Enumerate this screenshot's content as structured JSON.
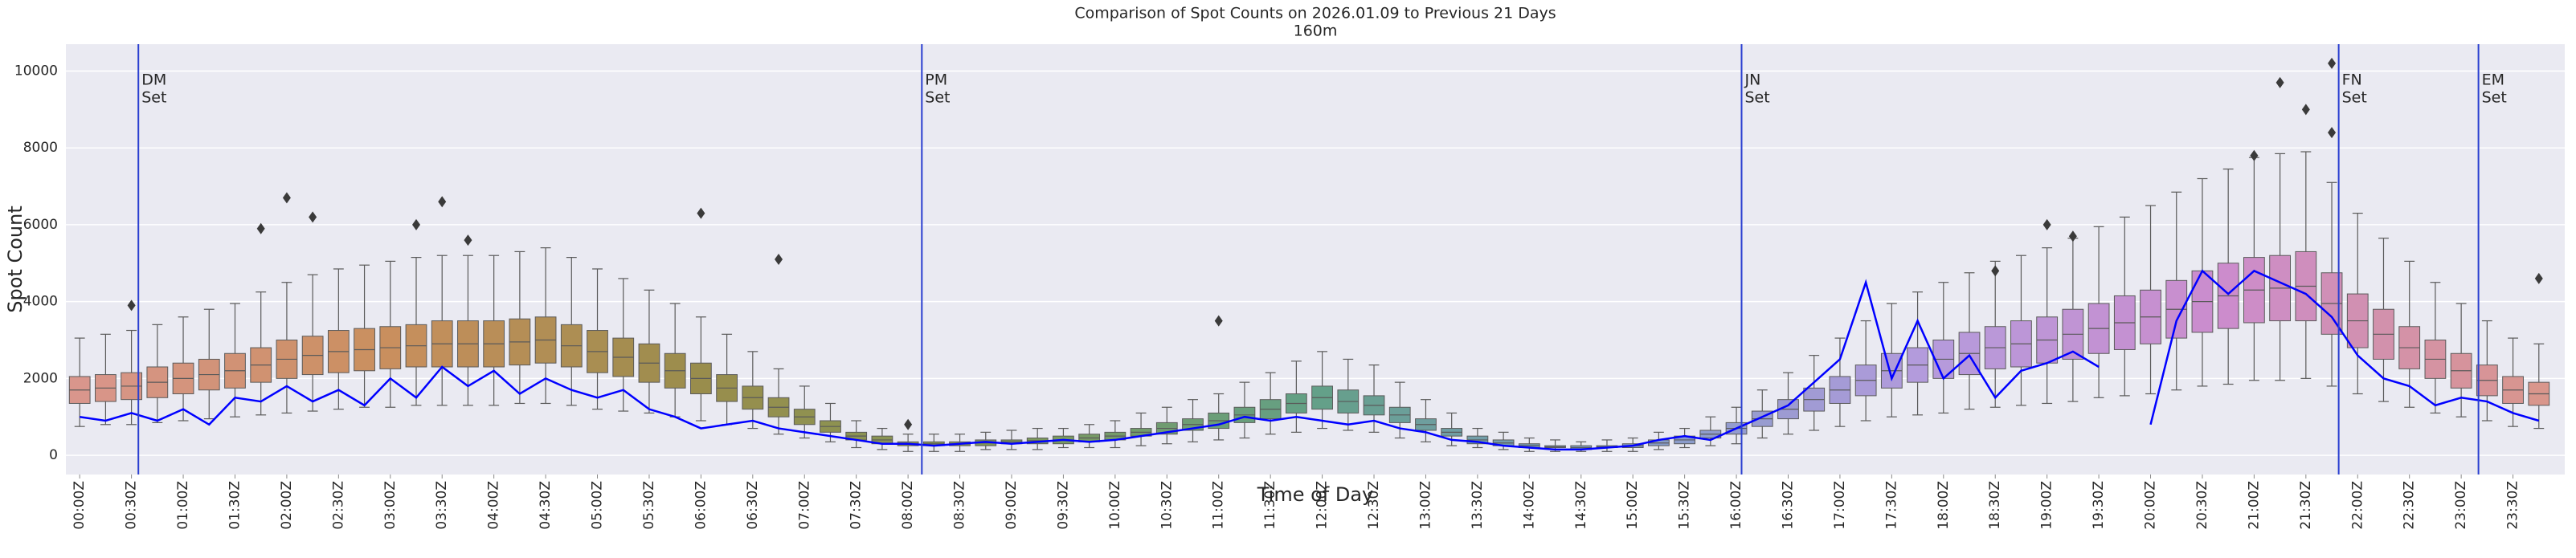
{
  "chart_data": {
    "type": "box",
    "title": "Comparison of Spot Counts on 2026.01.09 to Previous 21 Days",
    "subtitle": "160m",
    "xlabel": "Time of Day",
    "ylabel": "Spot Count",
    "xlim": [
      -8,
      1440
    ],
    "ylim": [
      -500,
      10700
    ],
    "yticks": [
      0,
      2000,
      4000,
      6000,
      8000,
      10000
    ],
    "xticks": [
      {
        "value": 0,
        "label": "00:00Z"
      },
      {
        "value": 30,
        "label": "00:30Z"
      },
      {
        "value": 60,
        "label": "01:00Z"
      },
      {
        "value": 90,
        "label": "01:30Z"
      },
      {
        "value": 120,
        "label": "02:00Z"
      },
      {
        "value": 150,
        "label": "02:30Z"
      },
      {
        "value": 180,
        "label": "03:00Z"
      },
      {
        "value": 210,
        "label": "03:30Z"
      },
      {
        "value": 240,
        "label": "04:00Z"
      },
      {
        "value": 270,
        "label": "04:30Z"
      },
      {
        "value": 300,
        "label": "05:00Z"
      },
      {
        "value": 330,
        "label": "05:30Z"
      },
      {
        "value": 360,
        "label": "06:00Z"
      },
      {
        "value": 390,
        "label": "06:30Z"
      },
      {
        "value": 420,
        "label": "07:00Z"
      },
      {
        "value": 450,
        "label": "07:30Z"
      },
      {
        "value": 480,
        "label": "08:00Z"
      },
      {
        "value": 510,
        "label": "08:30Z"
      },
      {
        "value": 540,
        "label": "09:00Z"
      },
      {
        "value": 570,
        "label": "09:30Z"
      },
      {
        "value": 600,
        "label": "10:00Z"
      },
      {
        "value": 630,
        "label": "10:30Z"
      },
      {
        "value": 660,
        "label": "11:00Z"
      },
      {
        "value": 690,
        "label": "11:30Z"
      },
      {
        "value": 720,
        "label": "12:00Z"
      },
      {
        "value": 750,
        "label": "12:30Z"
      },
      {
        "value": 780,
        "label": "13:00Z"
      },
      {
        "value": 810,
        "label": "13:30Z"
      },
      {
        "value": 840,
        "label": "14:00Z"
      },
      {
        "value": 870,
        "label": "14:30Z"
      },
      {
        "value": 900,
        "label": "15:00Z"
      },
      {
        "value": 930,
        "label": "15:30Z"
      },
      {
        "value": 960,
        "label": "16:00Z"
      },
      {
        "value": 990,
        "label": "16:30Z"
      },
      {
        "value": 1020,
        "label": "17:00Z"
      },
      {
        "value": 1050,
        "label": "17:30Z"
      },
      {
        "value": 1080,
        "label": "18:00Z"
      },
      {
        "value": 1110,
        "label": "18:30Z"
      },
      {
        "value": 1140,
        "label": "19:00Z"
      },
      {
        "value": 1170,
        "label": "19:30Z"
      },
      {
        "value": 1200,
        "label": "20:00Z"
      },
      {
        "value": 1230,
        "label": "20:30Z"
      },
      {
        "value": 1260,
        "label": "21:00Z"
      },
      {
        "value": 1290,
        "label": "21:30Z"
      },
      {
        "value": 1320,
        "label": "22:00Z"
      },
      {
        "value": 1350,
        "label": "22:30Z"
      },
      {
        "value": 1380,
        "label": "23:00Z"
      },
      {
        "value": 1410,
        "label": "23:30Z"
      }
    ],
    "grid": true,
    "palette": [
      "#d9968c",
      "#c98f5e",
      "#9a8d4c",
      "#7f9858",
      "#63a086",
      "#7f9cc6",
      "#b49bdc",
      "#cc8ccc",
      "#d9968c"
    ],
    "x": [
      0,
      15,
      30,
      45,
      60,
      75,
      90,
      105,
      120,
      135,
      150,
      165,
      180,
      195,
      210,
      225,
      240,
      255,
      270,
      285,
      300,
      315,
      330,
      345,
      360,
      375,
      390,
      405,
      420,
      435,
      450,
      465,
      480,
      495,
      510,
      525,
      540,
      555,
      570,
      585,
      600,
      615,
      630,
      645,
      660,
      675,
      690,
      705,
      720,
      735,
      750,
      765,
      780,
      795,
      810,
      825,
      840,
      855,
      870,
      885,
      900,
      915,
      930,
      945,
      960,
      975,
      990,
      1005,
      1020,
      1035,
      1050,
      1065,
      1080,
      1095,
      1110,
      1125,
      1140,
      1155,
      1170,
      1185,
      1200,
      1215,
      1230,
      1245,
      1260,
      1275,
      1290,
      1305,
      1320,
      1335,
      1350,
      1365,
      1380,
      1395,
      1410,
      1425
    ],
    "whislo": [
      750,
      800,
      800,
      850,
      900,
      950,
      1000,
      1050,
      1100,
      1150,
      1200,
      1250,
      1250,
      1300,
      1300,
      1300,
      1300,
      1350,
      1350,
      1300,
      1200,
      1150,
      1100,
      1000,
      900,
      800,
      700,
      550,
      450,
      350,
      200,
      150,
      100,
      100,
      100,
      150,
      150,
      150,
      200,
      200,
      200,
      250,
      300,
      350,
      400,
      450,
      550,
      600,
      700,
      650,
      600,
      450,
      350,
      250,
      200,
      150,
      100,
      100,
      100,
      100,
      100,
      150,
      200,
      250,
      300,
      450,
      550,
      650,
      750,
      900,
      1000,
      1050,
      1100,
      1200,
      1250,
      1300,
      1350,
      1400,
      1500,
      1550,
      1600,
      1700,
      1800,
      1850,
      1950,
      1950,
      2000,
      1800,
      1600,
      1400,
      1250,
      1100,
      1000,
      900,
      750,
      700
    ],
    "q1": [
      1350,
      1400,
      1450,
      1500,
      1600,
      1700,
      1750,
      1900,
      2000,
      2100,
      2150,
      2200,
      2250,
      2300,
      2300,
      2300,
      2300,
      2350,
      2400,
      2300,
      2150,
      2050,
      1900,
      1750,
      1600,
      1400,
      1200,
      1000,
      800,
      600,
      400,
      300,
      250,
      250,
      250,
      250,
      300,
      300,
      300,
      350,
      400,
      500,
      550,
      650,
      700,
      850,
      950,
      1100,
      1200,
      1100,
      1050,
      850,
      650,
      500,
      300,
      250,
      200,
      200,
      150,
      200,
      200,
      250,
      300,
      450,
      550,
      750,
      950,
      1150,
      1350,
      1550,
      1750,
      1900,
      2000,
      2100,
      2250,
      2300,
      2400,
      2500,
      2650,
      2750,
      2900,
      3050,
      3200,
      3300,
      3450,
      3500,
      3500,
      3150,
      2800,
      2500,
      2250,
      2000,
      1750,
      1550,
      1350,
      1300
    ],
    "median": [
      1700,
      1750,
      1800,
      1900,
      2000,
      2100,
      2200,
      2350,
      2500,
      2600,
      2700,
      2750,
      2800,
      2850,
      2900,
      2900,
      2900,
      2950,
      3000,
      2850,
      2700,
      2550,
      2400,
      2200,
      2000,
      1750,
      1500,
      1250,
      1000,
      750,
      500,
      400,
      300,
      300,
      300,
      320,
      350,
      380,
      400,
      450,
      500,
      600,
      700,
      800,
      900,
      1050,
      1200,
      1350,
      1500,
      1400,
      1300,
      1050,
      800,
      600,
      400,
      320,
      250,
      220,
      200,
      220,
      250,
      320,
      400,
      550,
      700,
      950,
      1200,
      1450,
      1700,
      1950,
      2200,
      2350,
      2500,
      2650,
      2800,
      2900,
      3000,
      3150,
      3300,
      3450,
      3600,
      3800,
      4000,
      4150,
      4300,
      4350,
      4400,
      3950,
      3500,
      3150,
      2800,
      2500,
      2200,
      1950,
      1700,
      1600
    ],
    "q3": [
      2050,
      2100,
      2150,
      2300,
      2400,
      2500,
      2650,
      2800,
      3000,
      3100,
      3250,
      3300,
      3350,
      3400,
      3500,
      3500,
      3500,
      3550,
      3600,
      3400,
      3250,
      3050,
      2900,
      2650,
      2400,
      2100,
      1800,
      1500,
      1200,
      900,
      600,
      500,
      350,
      350,
      350,
      400,
      400,
      450,
      500,
      550,
      600,
      700,
      850,
      950,
      1100,
      1250,
      1450,
      1600,
      1800,
      1700,
      1550,
      1250,
      950,
      700,
      500,
      400,
      300,
      250,
      250,
      250,
      300,
      400,
      500,
      650,
      850,
      1150,
      1450,
      1750,
      2050,
      2350,
      2650,
      2800,
      3000,
      3200,
      3350,
      3500,
      3600,
      3800,
      3950,
      4150,
      4300,
      4550,
      4800,
      5000,
      5150,
      5200,
      5300,
      4750,
      4200,
      3800,
      3350,
      3000,
      2650,
      2350,
      2050,
      1900
    ],
    "whishi": [
      3050,
      3150,
      3250,
      3400,
      3600,
      3800,
      3950,
      4250,
      4500,
      4700,
      4850,
      4950,
      5050,
      5150,
      5200,
      5200,
      5200,
      5300,
      5400,
      5150,
      4850,
      4600,
      4300,
      3950,
      3600,
      3150,
      2700,
      2250,
      1800,
      1350,
      900,
      700,
      550,
      550,
      550,
      600,
      650,
      700,
      700,
      800,
      900,
      1100,
      1250,
      1450,
      1600,
      1900,
      2150,
      2450,
      2700,
      2500,
      2350,
      1900,
      1450,
      1100,
      700,
      600,
      450,
      400,
      350,
      400,
      450,
      600,
      700,
      1000,
      1250,
      1700,
      2150,
      2600,
      3050,
      3500,
      3950,
      4250,
      4500,
      4750,
      5050,
      5200,
      5400,
      5650,
      5950,
      6200,
      6500,
      6850,
      7200,
      7450,
      7750,
      7850,
      7900,
      7100,
      6300,
      5650,
      5050,
      4500,
      3950,
      3500,
      3050,
      2900
    ],
    "outliers": {
      "color": "#3a3a3a",
      "x": [
        30,
        105,
        120,
        135,
        195,
        210,
        225,
        360,
        405,
        480,
        660,
        1110,
        1140,
        1155,
        1260,
        1275,
        1290,
        1305,
        1305,
        1425
      ],
      "y": [
        3900,
        5900,
        6700,
        6200,
        6000,
        6600,
        5600,
        6300,
        5100,
        800,
        3500,
        4800,
        6000,
        5700,
        7800,
        9700,
        9000,
        10200,
        8400,
        4600
      ]
    },
    "line": {
      "color": "#0000ff",
      "values": [
        1000,
        900,
        1100,
        900,
        1200,
        800,
        1500,
        1400,
        1800,
        1400,
        1700,
        1300,
        2000,
        1500,
        2300,
        1800,
        2200,
        1600,
        2000,
        1700,
        1500,
        1700,
        1200,
        1000,
        700,
        800,
        900,
        700,
        600,
        500,
        400,
        300,
        300,
        250,
        300,
        350,
        300,
        350,
        400,
        350,
        400,
        500,
        600,
        700,
        800,
        1000,
        900,
        1000,
        900,
        800,
        900,
        700,
        600,
        400,
        350,
        250,
        200,
        150,
        150,
        200,
        250,
        400,
        500,
        400,
        700,
        1000,
        1300,
        1900,
        2500,
        4500,
        2000,
        3500,
        2000,
        2600,
        1500,
        2200,
        2400,
        2700,
        2300,
        null,
        800,
        3500,
        4800,
        4200,
        4800,
        4500,
        4200,
        3600,
        2600,
        2000,
        1800,
        1300,
        1500,
        1400,
        1100,
        900
      ]
    },
    "reference_lines": {
      "color": "#2a3fd0",
      "lines": [
        {
          "x": 34,
          "label": [
            "DM",
            "Set"
          ]
        },
        {
          "x": 488,
          "label": [
            "PM",
            "Set"
          ]
        },
        {
          "x": 963,
          "label": [
            "JN",
            "Set"
          ]
        },
        {
          "x": 1309,
          "label": [
            "FN",
            "Set"
          ]
        },
        {
          "x": 1390,
          "label": [
            "EM",
            "Set"
          ]
        }
      ]
    }
  }
}
